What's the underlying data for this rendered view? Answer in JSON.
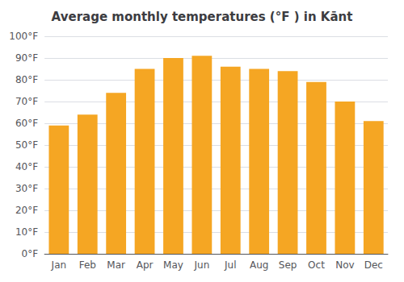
{
  "chart_data": {
    "type": "bar",
    "title": "Average monthly temperatures (°F ) in Kānt",
    "categories": [
      "Jan",
      "Feb",
      "Mar",
      "Apr",
      "May",
      "Jun",
      "Jul",
      "Aug",
      "Sep",
      "Oct",
      "Nov",
      "Dec"
    ],
    "values": [
      59,
      64,
      74,
      85,
      90,
      91,
      86,
      85,
      84,
      79,
      70,
      61
    ],
    "color": "#F5A623",
    "ylim": [
      0,
      100
    ],
    "yticks": [
      {
        "value": 0,
        "label": "0°F"
      },
      {
        "value": 10,
        "label": "10°F"
      },
      {
        "value": 20,
        "label": "20°F"
      },
      {
        "value": 30,
        "label": "30°F"
      },
      {
        "value": 40,
        "label": "40°F"
      },
      {
        "value": 50,
        "label": "50°F"
      },
      {
        "value": 60,
        "label": "60°F"
      },
      {
        "value": 70,
        "label": "70°F"
      },
      {
        "value": 80,
        "label": "80°F"
      },
      {
        "value": 90,
        "label": "90°F"
      },
      {
        "value": 100,
        "label": "100°F"
      }
    ],
    "grid": true
  }
}
